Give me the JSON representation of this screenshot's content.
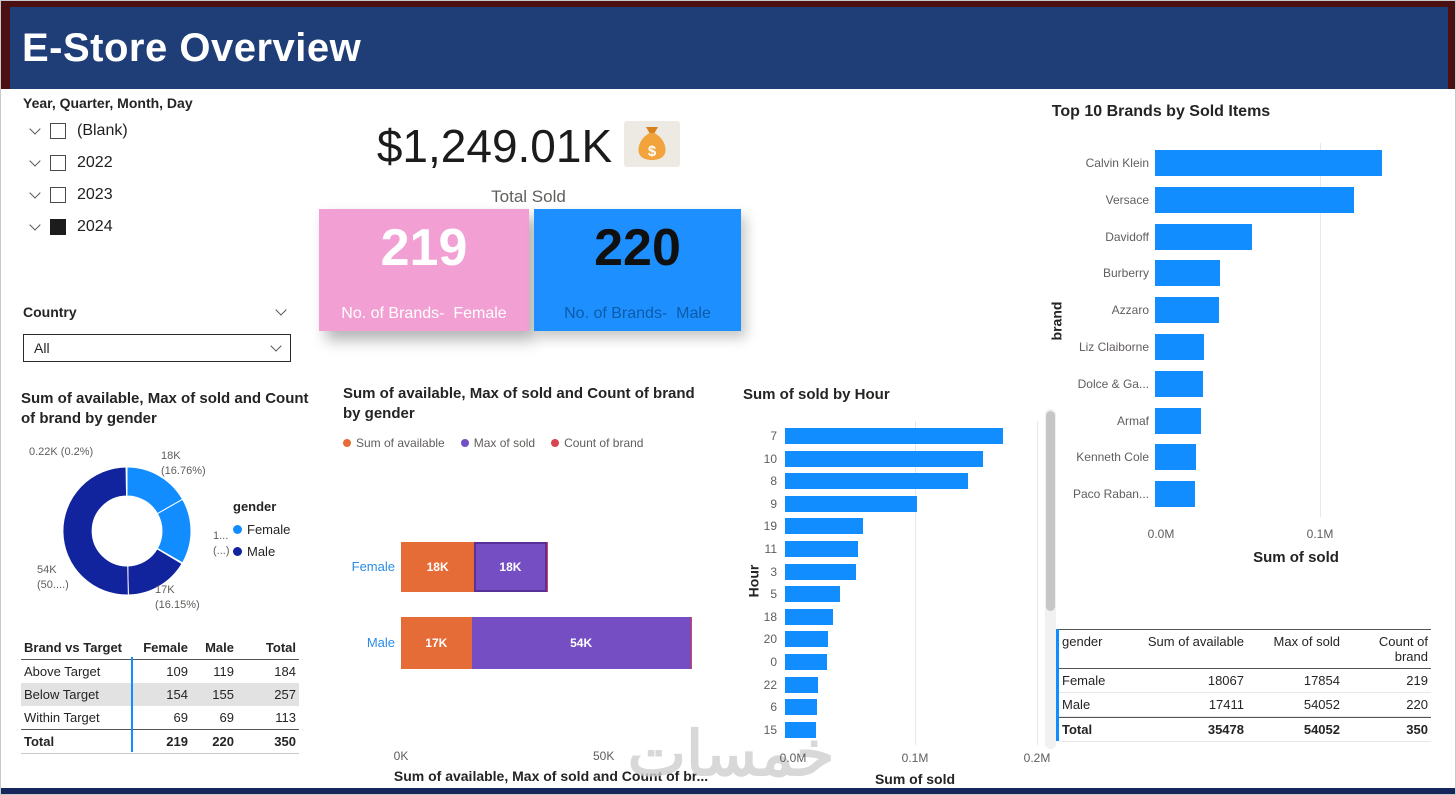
{
  "window": {
    "title": "E-Store Overview"
  },
  "slicers": {
    "date": {
      "title": "Year, Quarter, Month, Day",
      "items": [
        {
          "label": "(Blank)",
          "checked": false
        },
        {
          "label": "2022",
          "checked": false
        },
        {
          "label": "2023",
          "checked": false
        },
        {
          "label": "2024",
          "checked": true
        }
      ]
    },
    "country": {
      "title": "Country",
      "selected": "All"
    }
  },
  "kpi": {
    "total_sold": {
      "value": "$1,249.01K",
      "label": "Total Sold",
      "icon": "money-bag"
    },
    "female_card": {
      "value": "219",
      "label": "No. of Brands-  Female",
      "bg": "#F2A0D4",
      "value_color": "#FFFFFF",
      "label_color": "#FFFFFF"
    },
    "male_card": {
      "value": "220",
      "label": "No. of Brands-  Male",
      "bg": "#1E8FFF",
      "value_color": "#101010",
      "label_color": "#0B5CA8"
    }
  },
  "watermark": "خمسات",
  "chart_data": [
    {
      "id": "donut-gender",
      "type": "pie",
      "title": "Sum of available, Max of sold and Count of brand by gender",
      "legend_title": "gender",
      "legend_position": "right",
      "legend": [
        {
          "name": "Female",
          "color": "#118DFF"
        },
        {
          "name": "Male",
          "color": "#12239E"
        }
      ],
      "slices": [
        {
          "series": "Female",
          "measure": "Sum of available",
          "value": 18067,
          "color": "#118DFF"
        },
        {
          "series": "Female",
          "measure": "Max of sold",
          "value": 17854,
          "color": "#118DFF"
        },
        {
          "series": "Female",
          "measure": "Count of brand",
          "value": 219,
          "color": "#118DFF"
        },
        {
          "series": "Male",
          "measure": "Sum of available",
          "value": 17411,
          "color": "#12239E"
        },
        {
          "series": "Male",
          "measure": "Max of sold",
          "value": 54052,
          "color": "#12239E"
        },
        {
          "series": "Male",
          "measure": "Count of brand",
          "value": 220,
          "color": "#12239E"
        }
      ],
      "callouts": [
        {
          "text": "0.22K (0.2%)"
        },
        {
          "text": "18K\n(16.76%)"
        },
        {
          "text": "1...\n(...)"
        },
        {
          "text": "17K\n(16.15%)"
        },
        {
          "text": "54K\n(50....)"
        }
      ]
    },
    {
      "id": "stacked-gender",
      "type": "bar",
      "orientation": "horizontal-stacked",
      "title": "Sum of available, Max of sold and Count of brand by gender",
      "categories": [
        "Female",
        "Male"
      ],
      "series": [
        {
          "name": "Sum of available",
          "color": "#E66C37",
          "values": [
            18067,
            17411
          ],
          "labels": [
            "18K",
            "17K"
          ]
        },
        {
          "name": "Max of sold",
          "color": "#744EC2",
          "values": [
            17854,
            54052
          ],
          "labels": [
            "18K",
            "54K"
          ]
        },
        {
          "name": "Count of brand",
          "color": "#D64550",
          "values": [
            219,
            220
          ],
          "labels": [
            "",
            ""
          ]
        }
      ],
      "x_ticks": [
        "0K",
        "50K"
      ],
      "xlim": [
        0,
        74000
      ],
      "xlabel": "Sum of available, Max of sold and Count of br...",
      "grid": false
    },
    {
      "id": "sold-by-hour",
      "type": "bar",
      "orientation": "horizontal",
      "title": "Sum of sold by Hour",
      "categories": [
        "7",
        "10",
        "8",
        "9",
        "19",
        "11",
        "3",
        "5",
        "18",
        "20",
        "0",
        "22",
        "6",
        "15"
      ],
      "values": [
        0.179,
        0.162,
        0.15,
        0.108,
        0.064,
        0.06,
        0.058,
        0.045,
        0.039,
        0.035,
        0.034,
        0.027,
        0.026,
        0.025
      ],
      "x_ticks": [
        "0.0M",
        "0.1M",
        "0.2M"
      ],
      "xlim": [
        0,
        0.21
      ],
      "xlabel": "Sum of sold",
      "ylabel": "Hour",
      "bar_color": "#118DFF",
      "scrollbar": true
    },
    {
      "id": "top-brands",
      "type": "bar",
      "orientation": "horizontal",
      "title": "Top 10 Brands by Sold Items",
      "categories": [
        "Calvin Klein",
        "Versace",
        "Davidoff",
        "Burberry",
        "Azzaro",
        "Liz Claiborne",
        "Dolce & Ga...",
        "Armaf",
        "Kenneth Cole",
        "Paco Raban..."
      ],
      "values": [
        0.143,
        0.125,
        0.061,
        0.041,
        0.04,
        0.031,
        0.03,
        0.029,
        0.026,
        0.025
      ],
      "x_ticks": [
        "0.0M",
        "0.1M"
      ],
      "xlim": [
        0,
        0.162
      ],
      "xlabel": "Sum of sold",
      "ylabel": "brand",
      "bar_color": "#118DFF"
    },
    {
      "id": "brand-vs-target-table",
      "type": "table",
      "columns": [
        "Brand vs Target",
        "Female",
        "Male",
        "Total"
      ],
      "rows": [
        {
          "cells": [
            "Above Target",
            "109",
            "119",
            "184"
          ],
          "highlight": false
        },
        {
          "cells": [
            "Below Target",
            "154",
            "155",
            "257"
          ],
          "highlight": true
        },
        {
          "cells": [
            "Within Target",
            "69",
            "69",
            "113"
          ],
          "highlight": false
        }
      ],
      "total_row": [
        "Total",
        "219",
        "220",
        "350"
      ]
    },
    {
      "id": "gender-summary-table",
      "type": "table",
      "columns": [
        "gender",
        "Sum of available",
        "Max of sold",
        "Count of brand"
      ],
      "rows": [
        {
          "cells": [
            "Female",
            "18067",
            "17854",
            "219"
          ],
          "highlight": false
        },
        {
          "cells": [
            "Male",
            "17411",
            "54052",
            "220"
          ],
          "highlight": false
        }
      ],
      "total_row": [
        "Total",
        "35478",
        "54052",
        "350"
      ]
    }
  ]
}
